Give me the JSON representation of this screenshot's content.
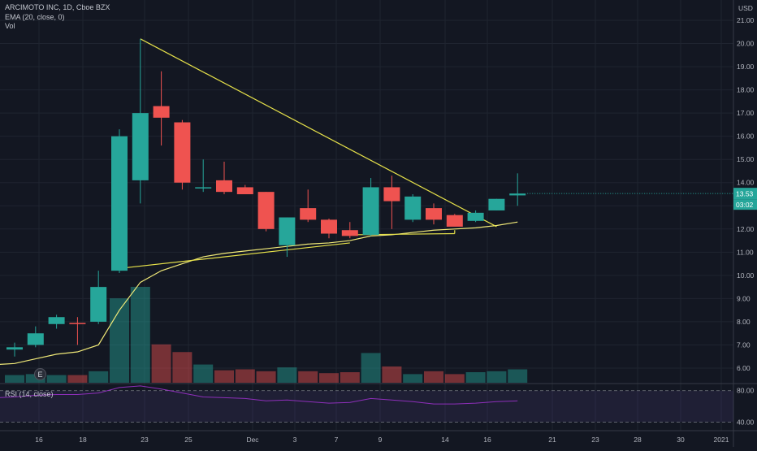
{
  "header": {
    "symbol_line": "ARCIMOTO INC, 1D, Cboe BZX",
    "indicator_ema": "EMA (20, close, 0)",
    "indicator_vol": "Vol",
    "currency": "USD"
  },
  "rsi_pane": {
    "label": "RSI (14, close)",
    "levels": [
      "80.00",
      "40.00"
    ]
  },
  "price_badges": {
    "last_price": "13.53",
    "countdown": "03:02",
    "color": "#26a69a"
  },
  "earnings_marker": "E",
  "colors": {
    "background": "#131722",
    "grid": "#1f2430",
    "up": "#26a69a",
    "down": "#ef5350",
    "ema": "#f0e978",
    "trendline": "#e6e14a",
    "rsi": "#8e2fba"
  },
  "chart_data": {
    "type": "candlestick",
    "y_axis_ticks": [
      "21.00",
      "20.00",
      "19.00",
      "18.00",
      "17.00",
      "16.00",
      "15.00",
      "14.00",
      "13.00",
      "12.00",
      "11.00",
      "10.00",
      "9.00",
      "8.00",
      "7.00",
      "6.00"
    ],
    "ylim": [
      5.6,
      21.4
    ],
    "x_tick_labels": [
      "16",
      "18",
      "23",
      "25",
      "Dec",
      "3",
      "7",
      "9",
      "14",
      "16",
      "21",
      "23",
      "28",
      "30",
      "2021"
    ],
    "candles": [
      {
        "o": 6.8,
        "h": 7.1,
        "l": 6.5,
        "c": 6.9
      },
      {
        "o": 7.0,
        "h": 7.8,
        "l": 6.9,
        "c": 7.5
      },
      {
        "o": 7.9,
        "h": 8.3,
        "l": 7.7,
        "c": 8.2
      },
      {
        "o": 7.95,
        "h": 8.2,
        "l": 7.0,
        "c": 7.9
      },
      {
        "o": 8.0,
        "h": 10.2,
        "l": 7.9,
        "c": 9.5
      },
      {
        "o": 10.2,
        "h": 16.3,
        "l": 10.1,
        "c": 16.0
      },
      {
        "o": 14.1,
        "h": 20.2,
        "l": 13.1,
        "c": 17.0
      },
      {
        "o": 17.3,
        "h": 18.8,
        "l": 15.6,
        "c": 16.8
      },
      {
        "o": 16.6,
        "h": 16.7,
        "l": 13.7,
        "c": 14.0
      },
      {
        "o": 13.8,
        "h": 15.0,
        "l": 13.6,
        "c": 13.8
      },
      {
        "o": 14.1,
        "h": 14.9,
        "l": 13.5,
        "c": 13.6
      },
      {
        "o": 13.8,
        "h": 13.9,
        "l": 13.5,
        "c": 13.5
      },
      {
        "o": 13.6,
        "h": 13.6,
        "l": 11.9,
        "c": 12.0
      },
      {
        "o": 11.3,
        "h": 12.5,
        "l": 10.8,
        "c": 12.5
      },
      {
        "o": 12.9,
        "h": 13.7,
        "l": 12.3,
        "c": 12.4
      },
      {
        "o": 12.4,
        "h": 12.45,
        "l": 11.6,
        "c": 11.8
      },
      {
        "o": 11.95,
        "h": 12.3,
        "l": 11.6,
        "c": 11.7
      },
      {
        "o": 11.75,
        "h": 14.2,
        "l": 11.7,
        "c": 13.8
      },
      {
        "o": 13.8,
        "h": 14.3,
        "l": 12.0,
        "c": 13.2
      },
      {
        "o": 12.4,
        "h": 13.5,
        "l": 12.3,
        "c": 13.4
      },
      {
        "o": 12.9,
        "h": 13.1,
        "l": 12.2,
        "c": 12.4
      },
      {
        "o": 12.6,
        "h": 12.65,
        "l": 12.1,
        "c": 12.1
      },
      {
        "o": 12.35,
        "h": 12.8,
        "l": 12.3,
        "c": 12.7
      },
      {
        "o": 12.8,
        "h": 13.3,
        "l": 12.8,
        "c": 13.3
      },
      {
        "o": 13.45,
        "h": 14.4,
        "l": 13.0,
        "c": 13.53
      }
    ],
    "volume_relative": [
      0.08,
      0.09,
      0.08,
      0.08,
      0.12,
      0.88,
      1.0,
      0.4,
      0.32,
      0.19,
      0.13,
      0.14,
      0.12,
      0.16,
      0.12,
      0.1,
      0.11,
      0.31,
      0.17,
      0.09,
      0.12,
      0.09,
      0.11,
      0.12,
      0.14
    ],
    "ema20": [
      6.2,
      6.4,
      6.6,
      6.7,
      7.0,
      8.5,
      9.7,
      10.2,
      10.5,
      10.8,
      10.95,
      11.05,
      11.15,
      11.25,
      11.35,
      11.4,
      11.5,
      11.7,
      11.75,
      11.85,
      11.95,
      12.0,
      12.05,
      12.15,
      12.3
    ],
    "trendlines": [
      {
        "from": {
          "i": 6,
          "price": 20.2
        },
        "to": {
          "i": 23,
          "price": 12.1
        }
      },
      {
        "from": {
          "i": 5,
          "price": 10.3
        },
        "to": {
          "i": 16,
          "price": 11.4
        }
      },
      {
        "from": {
          "i": 16,
          "price": 11.75
        },
        "to": {
          "i": 21,
          "price": 11.8
        }
      }
    ],
    "rsi": [
      72,
      74,
      75,
      75,
      77,
      84,
      86,
      82,
      77,
      72,
      71,
      70,
      67,
      68,
      66,
      64,
      65,
      70,
      68,
      66,
      63,
      63,
      64,
      66,
      67
    ],
    "rsi_range": [
      30,
      88
    ]
  }
}
